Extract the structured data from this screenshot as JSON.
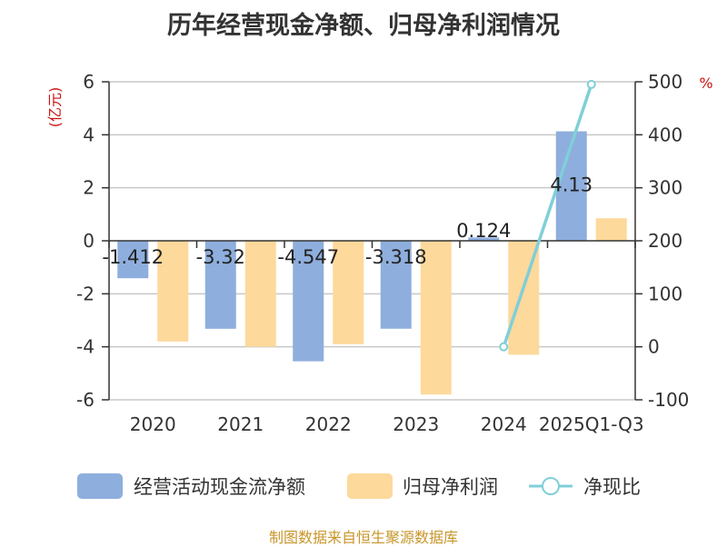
{
  "title": "历年经营现金净额、归母净利润情况",
  "source": "制图数据来自恒生聚源数据库",
  "colors": {
    "cash_flow": "#8eaedd",
    "net_profit": "#fdd99b",
    "ratio_line": "#80cfd8",
    "unit": "#cc1111",
    "grid": "#c8c8c8",
    "axis": "#333333"
  },
  "chart_data": {
    "type": "bar",
    "categories": [
      "2020",
      "2021",
      "2022",
      "2023",
      "2024",
      "2025Q1-Q3"
    ],
    "series": [
      {
        "name": "经营活动现金流净额",
        "type": "bar",
        "axis": "left",
        "values": [
          -1.412,
          -3.32,
          -4.547,
          -3.318,
          0.124,
          4.13
        ],
        "labels": [
          "-1.412",
          "-3.32",
          "-4.547",
          "-3.318",
          "0.124",
          "4.13"
        ]
      },
      {
        "name": "归母净利润",
        "type": "bar",
        "axis": "left",
        "values": [
          -3.8,
          -4.0,
          -3.9,
          -5.8,
          -4.3,
          0.85
        ]
      },
      {
        "name": "净现比",
        "type": "line",
        "axis": "right",
        "values": [
          null,
          null,
          null,
          null,
          0,
          495
        ]
      }
    ],
    "y_left": {
      "unit": "(亿元)",
      "min": -6,
      "max": 6,
      "ticks": [
        "6",
        "4",
        "2",
        "0",
        "-2",
        "-4",
        "-6"
      ],
      "tick_values": [
        6,
        4,
        2,
        0,
        -2,
        -4,
        -6
      ]
    },
    "y_right": {
      "unit": "%",
      "min": -100,
      "max": 500,
      "ticks": [
        "500",
        "400",
        "300",
        "200",
        "100",
        "0",
        "-100"
      ],
      "tick_values": [
        500,
        400,
        300,
        200,
        100,
        0,
        -100
      ]
    },
    "grid": true,
    "legend_position": "bottom"
  }
}
